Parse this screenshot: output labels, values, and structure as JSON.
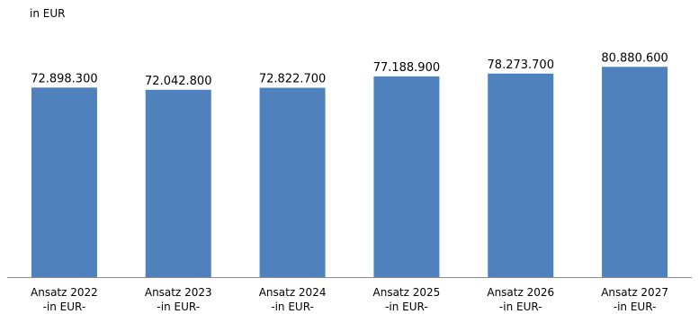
{
  "chart_data": {
    "type": "bar",
    "unit_label": "in EUR",
    "categories": [
      [
        "Ansatz 2022",
        "-in EUR-"
      ],
      [
        "Ansatz 2023",
        "-in EUR-"
      ],
      [
        "Ansatz 2024",
        "-in EUR-"
      ],
      [
        "Ansatz 2025",
        "-in EUR-"
      ],
      [
        "Ansatz 2026",
        "-in EUR-"
      ],
      [
        "Ansatz 2027",
        "-in EUR-"
      ]
    ],
    "values": [
      72898300,
      72042800,
      72822700,
      77188900,
      78273700,
      80880600
    ],
    "value_labels": [
      "72.898.300",
      "72.042.800",
      "72.822.700",
      "77.188.900",
      "78.273.700",
      "80.880.600"
    ],
    "bar_color": "#4F81BD",
    "ylim": [
      0,
      100000000
    ],
    "grid": false,
    "legend": "none"
  }
}
